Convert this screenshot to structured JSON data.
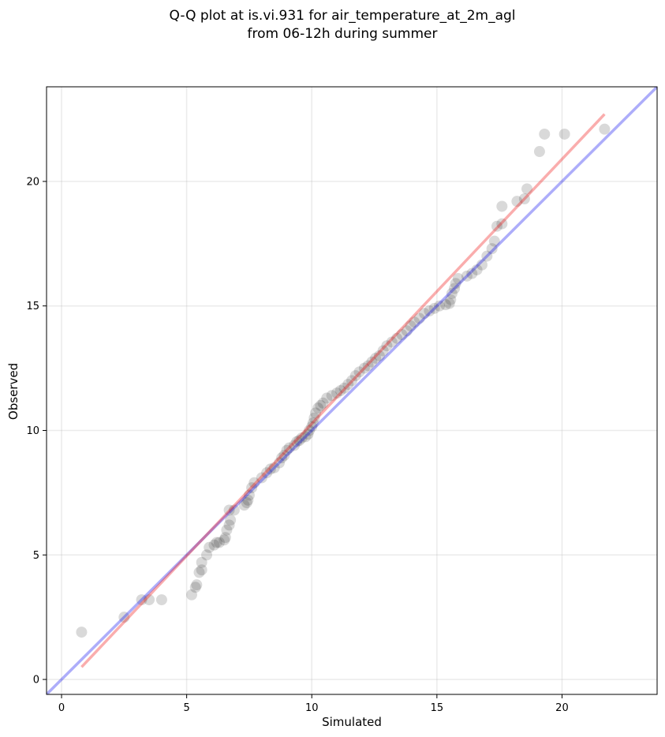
{
  "chart_data": {
    "type": "scatter",
    "title_line1": "Q-Q plot at is.vi.931 for air_temperature_at_2m_agl",
    "title_line2": "from 06-12h during summer",
    "xlabel": "Simulated",
    "ylabel": "Observed",
    "xlim": [
      -0.6,
      23.8
    ],
    "ylim": [
      -0.6,
      23.8
    ],
    "xticks": [
      0,
      5,
      10,
      15,
      20
    ],
    "yticks": [
      0,
      5,
      10,
      15,
      20
    ],
    "grid": true,
    "identity_line": {
      "color": "#0000ee",
      "from": [
        -0.6,
        -0.6
      ],
      "to": [
        23.8,
        23.8
      ]
    },
    "fit_line": {
      "color": "#ee0000",
      "from": [
        0.8,
        0.5
      ],
      "to": [
        21.7,
        22.7
      ]
    },
    "point_color": "#000000",
    "points": [
      [
        0.8,
        1.9
      ],
      [
        2.5,
        2.5
      ],
      [
        3.2,
        3.2
      ],
      [
        3.5,
        3.2
      ],
      [
        4.0,
        3.2
      ],
      [
        5.2,
        3.4
      ],
      [
        5.35,
        3.7
      ],
      [
        5.4,
        3.8
      ],
      [
        5.5,
        4.3
      ],
      [
        5.6,
        4.4
      ],
      [
        5.6,
        4.7
      ],
      [
        5.8,
        5.0
      ],
      [
        5.9,
        5.3
      ],
      [
        6.1,
        5.4
      ],
      [
        6.2,
        5.5
      ],
      [
        6.3,
        5.5
      ],
      [
        6.5,
        5.6
      ],
      [
        6.55,
        5.7
      ],
      [
        6.6,
        6.0
      ],
      [
        6.7,
        6.2
      ],
      [
        6.75,
        6.4
      ],
      [
        6.7,
        6.8
      ],
      [
        6.9,
        6.8
      ],
      [
        7.3,
        7.0
      ],
      [
        7.4,
        7.1
      ],
      [
        7.45,
        7.2
      ],
      [
        7.5,
        7.4
      ],
      [
        7.6,
        7.7
      ],
      [
        7.7,
        7.9
      ],
      [
        8.0,
        8.1
      ],
      [
        8.2,
        8.3
      ],
      [
        8.35,
        8.45
      ],
      [
        8.5,
        8.5
      ],
      [
        8.7,
        8.7
      ],
      [
        8.8,
        8.9
      ],
      [
        8.9,
        9.0
      ],
      [
        9.0,
        9.2
      ],
      [
        9.1,
        9.3
      ],
      [
        9.3,
        9.4
      ],
      [
        9.4,
        9.55
      ],
      [
        9.5,
        9.6
      ],
      [
        9.6,
        9.7
      ],
      [
        9.75,
        9.75
      ],
      [
        9.85,
        9.85
      ],
      [
        9.9,
        10.0
      ],
      [
        10.0,
        10.15
      ],
      [
        10.05,
        10.3
      ],
      [
        10.1,
        10.5
      ],
      [
        10.15,
        10.7
      ],
      [
        10.25,
        10.9
      ],
      [
        10.35,
        11.0
      ],
      [
        10.45,
        11.1
      ],
      [
        10.6,
        11.3
      ],
      [
        10.8,
        11.4
      ],
      [
        11.0,
        11.5
      ],
      [
        11.15,
        11.6
      ],
      [
        11.3,
        11.7
      ],
      [
        11.45,
        11.85
      ],
      [
        11.6,
        12.0
      ],
      [
        11.75,
        12.2
      ],
      [
        11.9,
        12.35
      ],
      [
        12.1,
        12.5
      ],
      [
        12.25,
        12.6
      ],
      [
        12.4,
        12.75
      ],
      [
        12.55,
        12.9
      ],
      [
        12.7,
        13.0
      ],
      [
        12.85,
        13.2
      ],
      [
        13.0,
        13.4
      ],
      [
        13.2,
        13.55
      ],
      [
        13.4,
        13.7
      ],
      [
        13.6,
        13.85
      ],
      [
        13.8,
        14.0
      ],
      [
        13.95,
        14.2
      ],
      [
        14.1,
        14.35
      ],
      [
        14.3,
        14.5
      ],
      [
        14.5,
        14.7
      ],
      [
        14.7,
        14.8
      ],
      [
        14.9,
        14.9
      ],
      [
        15.1,
        15.0
      ],
      [
        15.35,
        15.05
      ],
      [
        15.5,
        15.1
      ],
      [
        15.55,
        15.25
      ],
      [
        15.6,
        15.5
      ],
      [
        15.7,
        15.7
      ],
      [
        15.75,
        15.9
      ],
      [
        15.85,
        16.1
      ],
      [
        16.2,
        16.2
      ],
      [
        16.4,
        16.3
      ],
      [
        16.6,
        16.45
      ],
      [
        16.8,
        16.65
      ],
      [
        17.0,
        17.0
      ],
      [
        17.2,
        17.3
      ],
      [
        17.3,
        17.6
      ],
      [
        17.4,
        18.2
      ],
      [
        17.6,
        18.3
      ],
      [
        17.6,
        19.0
      ],
      [
        18.2,
        19.2
      ],
      [
        18.5,
        19.3
      ],
      [
        18.6,
        19.7
      ],
      [
        19.1,
        21.2
      ],
      [
        19.3,
        21.9
      ],
      [
        20.1,
        21.9
      ],
      [
        21.7,
        22.1
      ]
    ]
  }
}
